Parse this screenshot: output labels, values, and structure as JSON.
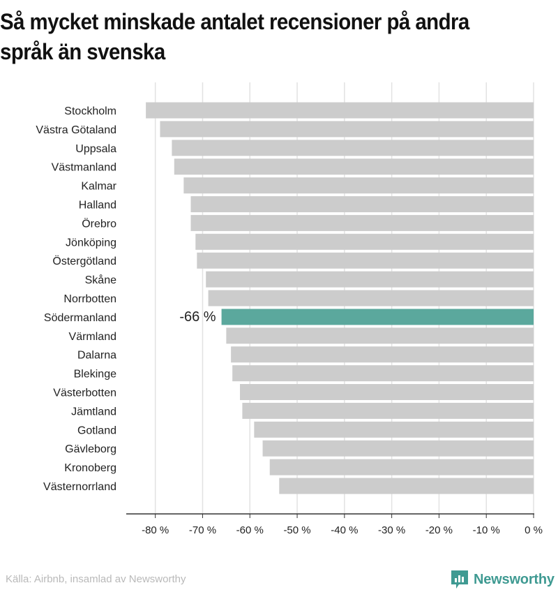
{
  "title": "Så mycket minskade antalet recensioner på andra språk än svenska",
  "source": "Källa: Airbnb, insamlad av Newsworthy",
  "brand": "Newsworthy",
  "colors": {
    "bar": "#cccccc",
    "highlight": "#5ba89d",
    "grid": "#e2e2e2",
    "brand": "#3f9a92"
  },
  "chart_data": {
    "type": "bar",
    "orientation": "horizontal",
    "categories": [
      "Stockholm",
      "Västra Götaland",
      "Uppsala",
      "Västmanland",
      "Kalmar",
      "Halland",
      "Örebro",
      "Jönköping",
      "Östergötland",
      "Skåne",
      "Norrbotten",
      "Södermanland",
      "Värmland",
      "Dalarna",
      "Blekinge",
      "Västerbotten",
      "Jämtland",
      "Gotland",
      "Gävleborg",
      "Kronoberg",
      "Västernorrland"
    ],
    "values": [
      -82,
      -79,
      -76.5,
      -76,
      -74,
      -72.5,
      -72.5,
      -71.5,
      -71.2,
      -69.3,
      -68.8,
      -66,
      -65,
      -64,
      -63.7,
      -62.1,
      -61.6,
      -59.1,
      -57.3,
      -55.8,
      -53.8
    ],
    "highlight_index": 11,
    "highlight_label": "-66 %",
    "xlim": [
      -86,
      0
    ],
    "ticks": [
      -80,
      -70,
      -60,
      -50,
      -40,
      -30,
      -20,
      -10,
      0
    ],
    "tick_labels": [
      "-80 %",
      "-70 %",
      "-60 %",
      "-50 %",
      "-40 %",
      "-30 %",
      "-20 %",
      "-10 %",
      "0 %"
    ],
    "grid": true
  }
}
